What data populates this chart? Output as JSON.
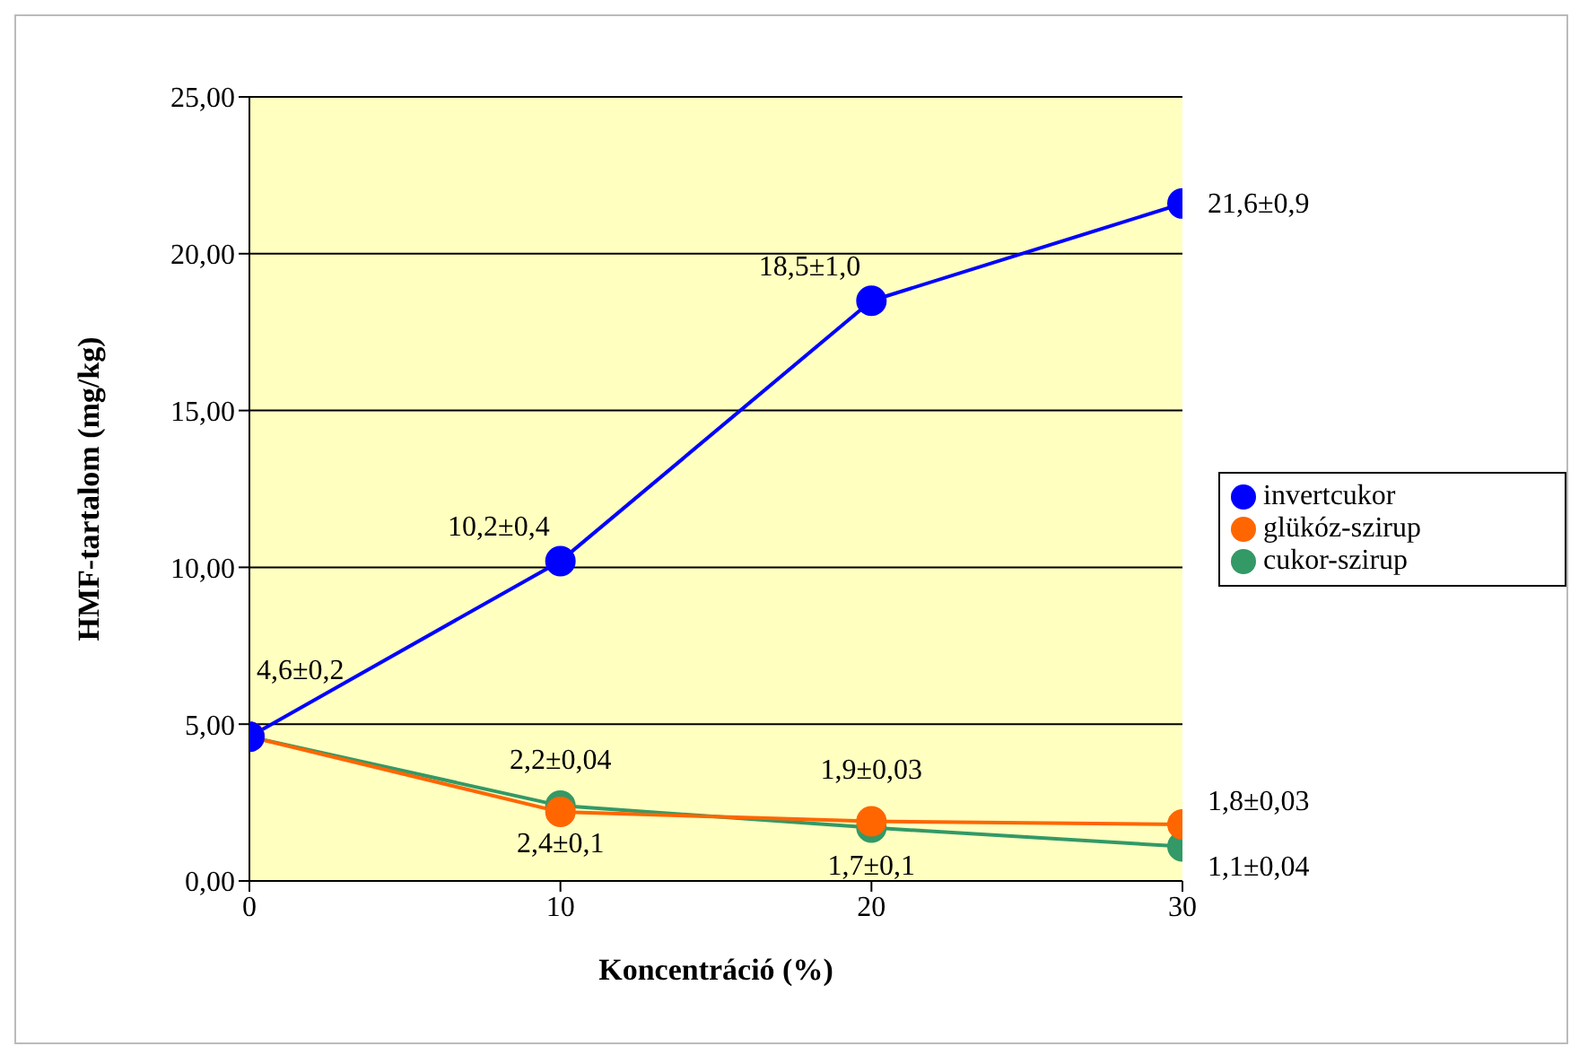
{
  "chart_data": {
    "type": "line",
    "xlabel": "Koncentráció (%)",
    "ylabel": "HMF-tartalom (mg/kg)",
    "x": [
      0,
      10,
      20,
      30
    ],
    "series": [
      {
        "name": "invertcukor",
        "color": "#0000ff",
        "values": [
          4.6,
          10.2,
          18.5,
          21.6
        ],
        "value_labels": [
          "4,6±0,2",
          "10,2±0,4",
          "18,5±1,0",
          "21,6±0,9"
        ]
      },
      {
        "name": "glükóz-szirup",
        "color": "#ff6600",
        "values": [
          4.6,
          2.2,
          1.9,
          1.8
        ],
        "value_labels": [
          null,
          "2,2±0,04",
          "1,9±0,03",
          "1,8±0,03"
        ]
      },
      {
        "name": "cukor-szirup",
        "color": "#339966",
        "values": [
          4.6,
          2.4,
          1.7,
          1.1
        ],
        "value_labels": [
          null,
          "2,4±0,1",
          "1,7±0,1",
          "1,1±0,04"
        ]
      }
    ],
    "xlim": [
      0,
      30
    ],
    "xticks": [
      0,
      10,
      20,
      30
    ],
    "ylim": [
      0,
      25
    ],
    "yticks": [
      {
        "value": 0,
        "label": "0,00"
      },
      {
        "value": 5,
        "label": "5,00"
      },
      {
        "value": 10,
        "label": "10,00"
      },
      {
        "value": 15,
        "label": "15,00"
      },
      {
        "value": 20,
        "label": "20,00"
      },
      {
        "value": 25,
        "label": "25,00"
      }
    ],
    "grid": "y",
    "legend": "right",
    "marker": "circle",
    "line_style": "solid"
  }
}
